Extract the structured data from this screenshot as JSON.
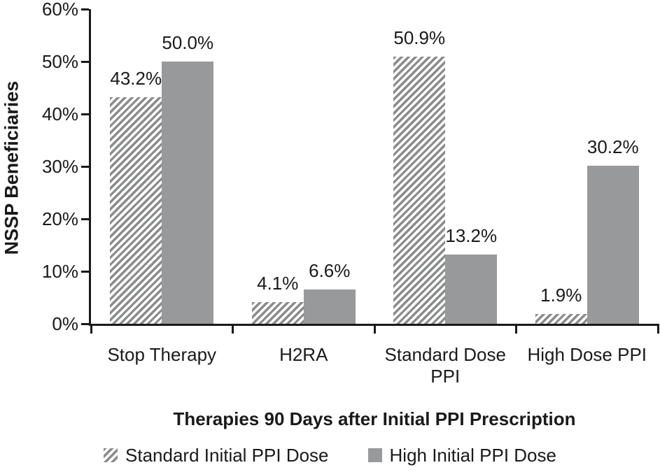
{
  "chart_data": {
    "type": "bar",
    "title": "",
    "xlabel": "Therapies 90 Days after Initial PPI Prescription",
    "ylabel": "NSSP Beneficiaries",
    "categories": [
      "Stop Therapy",
      "H2RA",
      "Standard Dose PPI",
      "High Dose PPI"
    ],
    "series": [
      {
        "name": "Standard Initial PPI Dose",
        "style": "hatched",
        "values": [
          43.2,
          4.1,
          50.9,
          1.9
        ]
      },
      {
        "name": "High Initial PPI Dose",
        "style": "solid",
        "values": [
          50.0,
          6.6,
          13.2,
          30.2
        ]
      }
    ],
    "value_labels": [
      [
        "43.2%",
        "4.1%",
        "50.9%",
        "1.9%"
      ],
      [
        "50.0%",
        "6.6%",
        "13.2%",
        "30.2%"
      ]
    ],
    "y_ticks": [
      "0%",
      "10%",
      "20%",
      "30%",
      "40%",
      "50%",
      "60%"
    ],
    "y_tick_values": [
      0,
      10,
      20,
      30,
      40,
      50,
      60
    ],
    "ylim": [
      0,
      60
    ],
    "grid": false,
    "legend_position": "bottom",
    "colors": {
      "solid_bar": "#98999a",
      "hatch_stroke": "#8a8b8c",
      "axis": "#1a1a1a",
      "text": "#1a1a1a",
      "background": "#ffffff"
    }
  }
}
